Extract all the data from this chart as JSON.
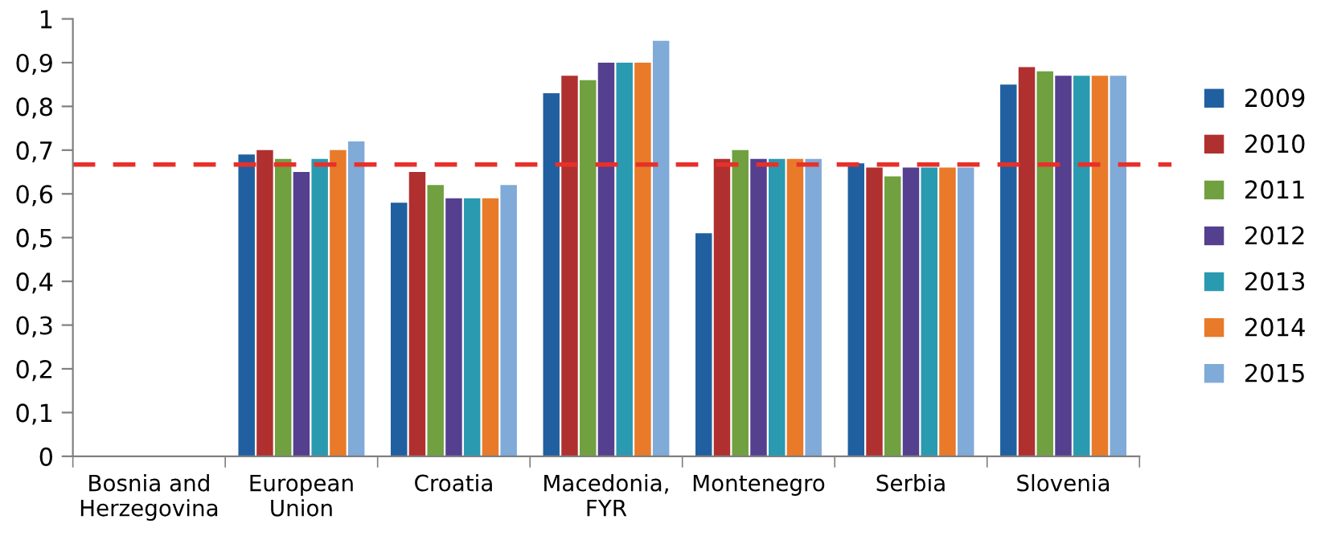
{
  "chart_data": {
    "type": "bar",
    "categories": [
      "Bosnia and\nHerzegovina",
      "European\nUnion",
      "Croatia",
      "Macedonia,\nFYR",
      "Montenegro",
      "Serbia",
      "Slovenia"
    ],
    "series": [
      {
        "name": "2009",
        "color": "#2060a0",
        "values": [
          null,
          0.69,
          0.58,
          0.83,
          0.51,
          0.67,
          0.85
        ]
      },
      {
        "name": "2010",
        "color": "#b03030",
        "values": [
          null,
          0.7,
          0.65,
          0.87,
          0.68,
          0.66,
          0.89
        ]
      },
      {
        "name": "2011",
        "color": "#70a040",
        "values": [
          null,
          0.68,
          0.62,
          0.86,
          0.7,
          0.64,
          0.88
        ]
      },
      {
        "name": "2012",
        "color": "#553f8f",
        "values": [
          null,
          0.65,
          0.59,
          0.9,
          0.68,
          0.66,
          0.87
        ]
      },
      {
        "name": "2013",
        "color": "#2a9ab0",
        "values": [
          null,
          0.68,
          0.59,
          0.9,
          0.68,
          0.66,
          0.87
        ]
      },
      {
        "name": "2014",
        "color": "#e87a2a",
        "values": [
          null,
          0.7,
          0.59,
          0.9,
          0.68,
          0.66,
          0.87
        ]
      },
      {
        "name": "2015",
        "color": "#80aad8",
        "values": [
          null,
          0.72,
          0.62,
          0.95,
          0.68,
          0.66,
          0.87
        ]
      }
    ],
    "ylim": [
      0,
      1
    ],
    "yticks": [
      {
        "value": 0,
        "label": "0"
      },
      {
        "value": 0.1,
        "label": "0,1"
      },
      {
        "value": 0.2,
        "label": "0,2"
      },
      {
        "value": 0.3,
        "label": "0,3"
      },
      {
        "value": 0.4,
        "label": "0,4"
      },
      {
        "value": 0.5,
        "label": "0,5"
      },
      {
        "value": 0.6,
        "label": "0,6"
      },
      {
        "value": 0.7,
        "label": "0,7"
      },
      {
        "value": 0.8,
        "label": "0,8"
      },
      {
        "value": 0.9,
        "label": "0,9"
      },
      {
        "value": 1,
        "label": "1"
      }
    ],
    "ref_lines": [
      {
        "axis": "y",
        "value": 0.667,
        "color": "#e8302a",
        "line_style": "dashed"
      }
    ],
    "legend": "right",
    "grid": false
  }
}
